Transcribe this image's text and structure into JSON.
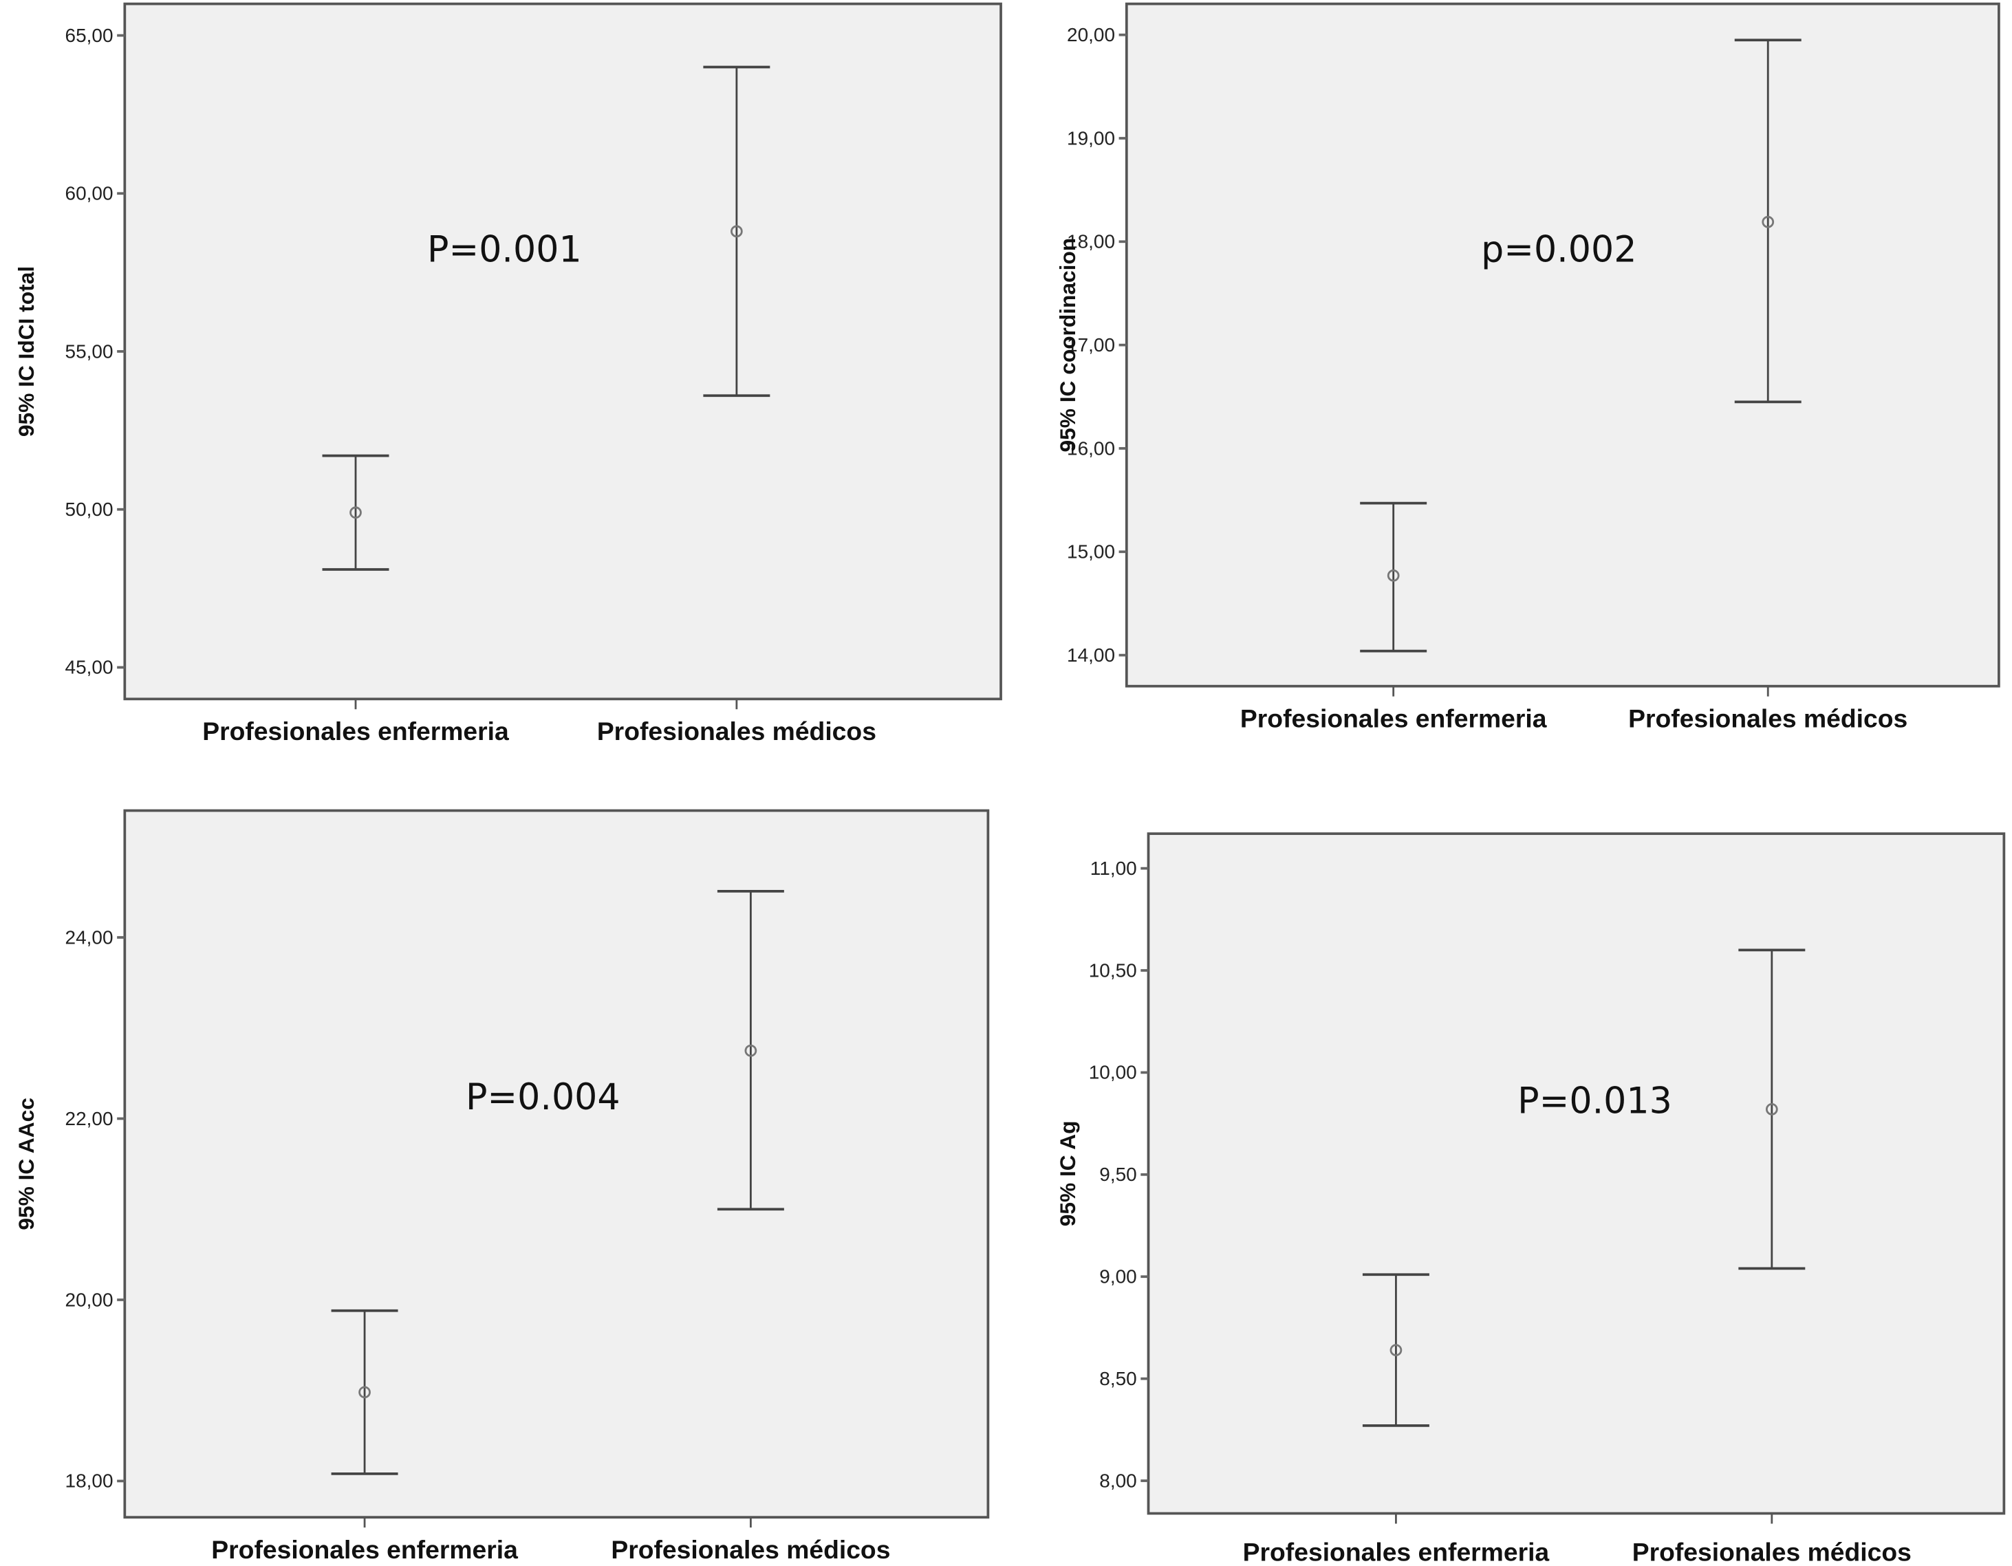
{
  "colors": {
    "plot_background": "#f0f0f0",
    "frame": "#555555",
    "error_bar": "#444444",
    "mean_marker": "#777777"
  },
  "chart_data": [
    {
      "type": "errorbar",
      "categories": [
        "Profesionales enfermeria",
        "Profesionales médicos"
      ],
      "ylabel": "95% IC IdCI total",
      "ylim": [
        44,
        66
      ],
      "yticks": [
        45,
        50,
        55,
        60,
        65
      ],
      "ytick_labels": [
        "45,00",
        "50,00",
        "55,00",
        "60,00",
        "65,00"
      ],
      "mean": [
        49.9,
        58.8
      ],
      "lower": [
        48.1,
        53.6
      ],
      "upper": [
        51.7,
        64.0
      ],
      "annotation": "P=0.001",
      "grid": false
    },
    {
      "type": "errorbar",
      "categories": [
        "Profesionales enfermeria",
        "Profesionales médicos"
      ],
      "ylabel": "95% IC coordinacion",
      "ylim": [
        13.7,
        20.3
      ],
      "yticks": [
        14,
        15,
        16,
        17,
        18,
        19,
        20
      ],
      "ytick_labels": [
        "14,00",
        "15,00",
        "16,00",
        "17,00",
        "18,00",
        "19,00",
        "20,00"
      ],
      "mean": [
        14.77,
        18.19
      ],
      "lower": [
        14.04,
        16.45
      ],
      "upper": [
        15.47,
        19.95
      ],
      "annotation": "p=0.002",
      "grid": false
    },
    {
      "type": "errorbar",
      "categories": [
        "Profesionales enfermeria",
        "Profesionales médicos"
      ],
      "ylabel": "95% IC AAcc",
      "ylim": [
        17.6,
        25.4
      ],
      "yticks": [
        18,
        20,
        22,
        24
      ],
      "ytick_labels": [
        "18,00",
        "20,00",
        "22,00",
        "24,00"
      ],
      "mean": [
        18.98,
        22.75
      ],
      "lower": [
        18.08,
        21.0
      ],
      "upper": [
        19.88,
        24.51
      ],
      "annotation": "P=0.004",
      "grid": false
    },
    {
      "type": "errorbar",
      "categories": [
        "Profesionales enfermeria",
        "Profesionales médicos"
      ],
      "ylabel": "95% IC Ag",
      "ylim": [
        7.84,
        11.17
      ],
      "yticks": [
        8,
        8.5,
        9,
        9.5,
        10,
        10.5,
        11
      ],
      "ytick_labels": [
        "8,00",
        "8,50",
        "9,00",
        "9,50",
        "10,00",
        "10,50",
        "11,00"
      ],
      "mean": [
        8.64,
        9.82
      ],
      "lower": [
        8.27,
        9.04
      ],
      "upper": [
        9.01,
        10.6
      ],
      "annotation": "P=0.013",
      "grid": false
    }
  ]
}
